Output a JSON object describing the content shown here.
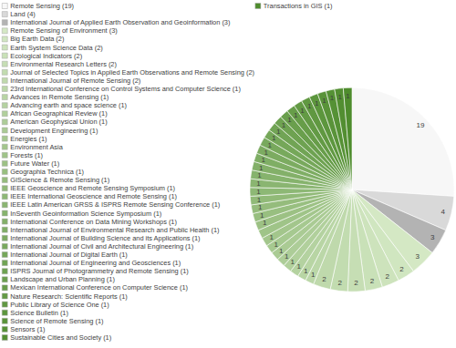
{
  "chart_data": {
    "type": "pie",
    "categories": [
      "Remote Sensing (19)",
      "Land (4)",
      "International Journal of Applied Earth Observation and Geoinformation (3)",
      "Remote Sensing of Environment (3)",
      "Big Earth Data (2)",
      "Earth System Science Data (2)",
      "Ecological Indicators (2)",
      "Environmental Research Letters (2)",
      "Journal of Selected Topics in Applied Earth Observations and Remote Sensing (2)",
      "International Journal of Remote Sensing (2)",
      "23rd International Conference on Control Systems and Computer Science (1)",
      "Advances in Remote Sensing (1)",
      "Advancing earth and space science (1)",
      "African Geographical Review (1)",
      "American Geophysical Union (1)",
      "Development Engineering (1)",
      "Energies (1)",
      "Environment Asia",
      "Forests (1)",
      "Future Water (1)",
      "Geographia Technica (1)",
      "GIScience & Remote Sensing (1)",
      "IEEE Geoscience and Remote Sensing Symposium (1)",
      "IEEE International Geoscience and Remote Sensing (1)",
      "IEEE Latin American GRSS & ISPRS Remote Sensing Conference (1)",
      "InSeventh Geoinformation Science Symposium (1)",
      "International Conference on Data Mining Workshops (1)",
      "International Journal of Environmental Research and Public Health (1)",
      "International Journal of Building Science and its Applications (1)",
      "International Journal of Civil and Architectural Engineering (1)",
      "International Journal of Digital Earth (1)",
      "International Journal of Engineering and Geosciences (1)",
      "ISPRS Journal of Photogrammetry and Remote Sensing (1)",
      "Landscape and Urban Planning (1)",
      "Mexican International Conference on Computer Science (1)",
      "Nature Research: Scientific Reports (1)",
      "Public Library of Science One (1)",
      "Science Bulletin (1)",
      "Science of Remote Sensing (1)",
      "Sensors (1)",
      "Sustainable Cities and Society (1)",
      "Transactions in GIS (1)"
    ],
    "values": [
      19,
      4,
      3,
      3,
      2,
      2,
      2,
      2,
      2,
      2,
      1,
      1,
      1,
      1,
      1,
      1,
      1,
      1,
      1,
      1,
      1,
      1,
      1,
      1,
      1,
      1,
      1,
      1,
      1,
      1,
      1,
      1,
      1,
      1,
      1,
      1,
      1,
      1,
      1,
      1,
      1,
      1
    ],
    "colors": [
      "#f7f7f7",
      "#d9d9d9",
      "#b3b3b3",
      "#d4e8c4",
      "#d0e6c0",
      "#cde3bc",
      "#c9e1b8",
      "#c6deb4",
      "#c2dcb0",
      "#bfd9ac",
      "#bbd7a8",
      "#b8d5a4",
      "#b4d2a0",
      "#b1d09c",
      "#adcd98",
      "#aacb94",
      "#a6c990",
      "#a3c68c",
      "#9fc488",
      "#9cc184",
      "#98bf80",
      "#95bc7c",
      "#91ba78",
      "#8db875",
      "#8ab571",
      "#86b36d",
      "#83b069",
      "#7fae65",
      "#7cab61",
      "#78a95d",
      "#75a759",
      "#71a455",
      "#6ea251",
      "#6a9f4d",
      "#679d49",
      "#639a45",
      "#609841",
      "#5c963d",
      "#599339",
      "#559135",
      "#528e31",
      "#4e8c2d"
    ],
    "data_labels": true,
    "legend": "left"
  }
}
